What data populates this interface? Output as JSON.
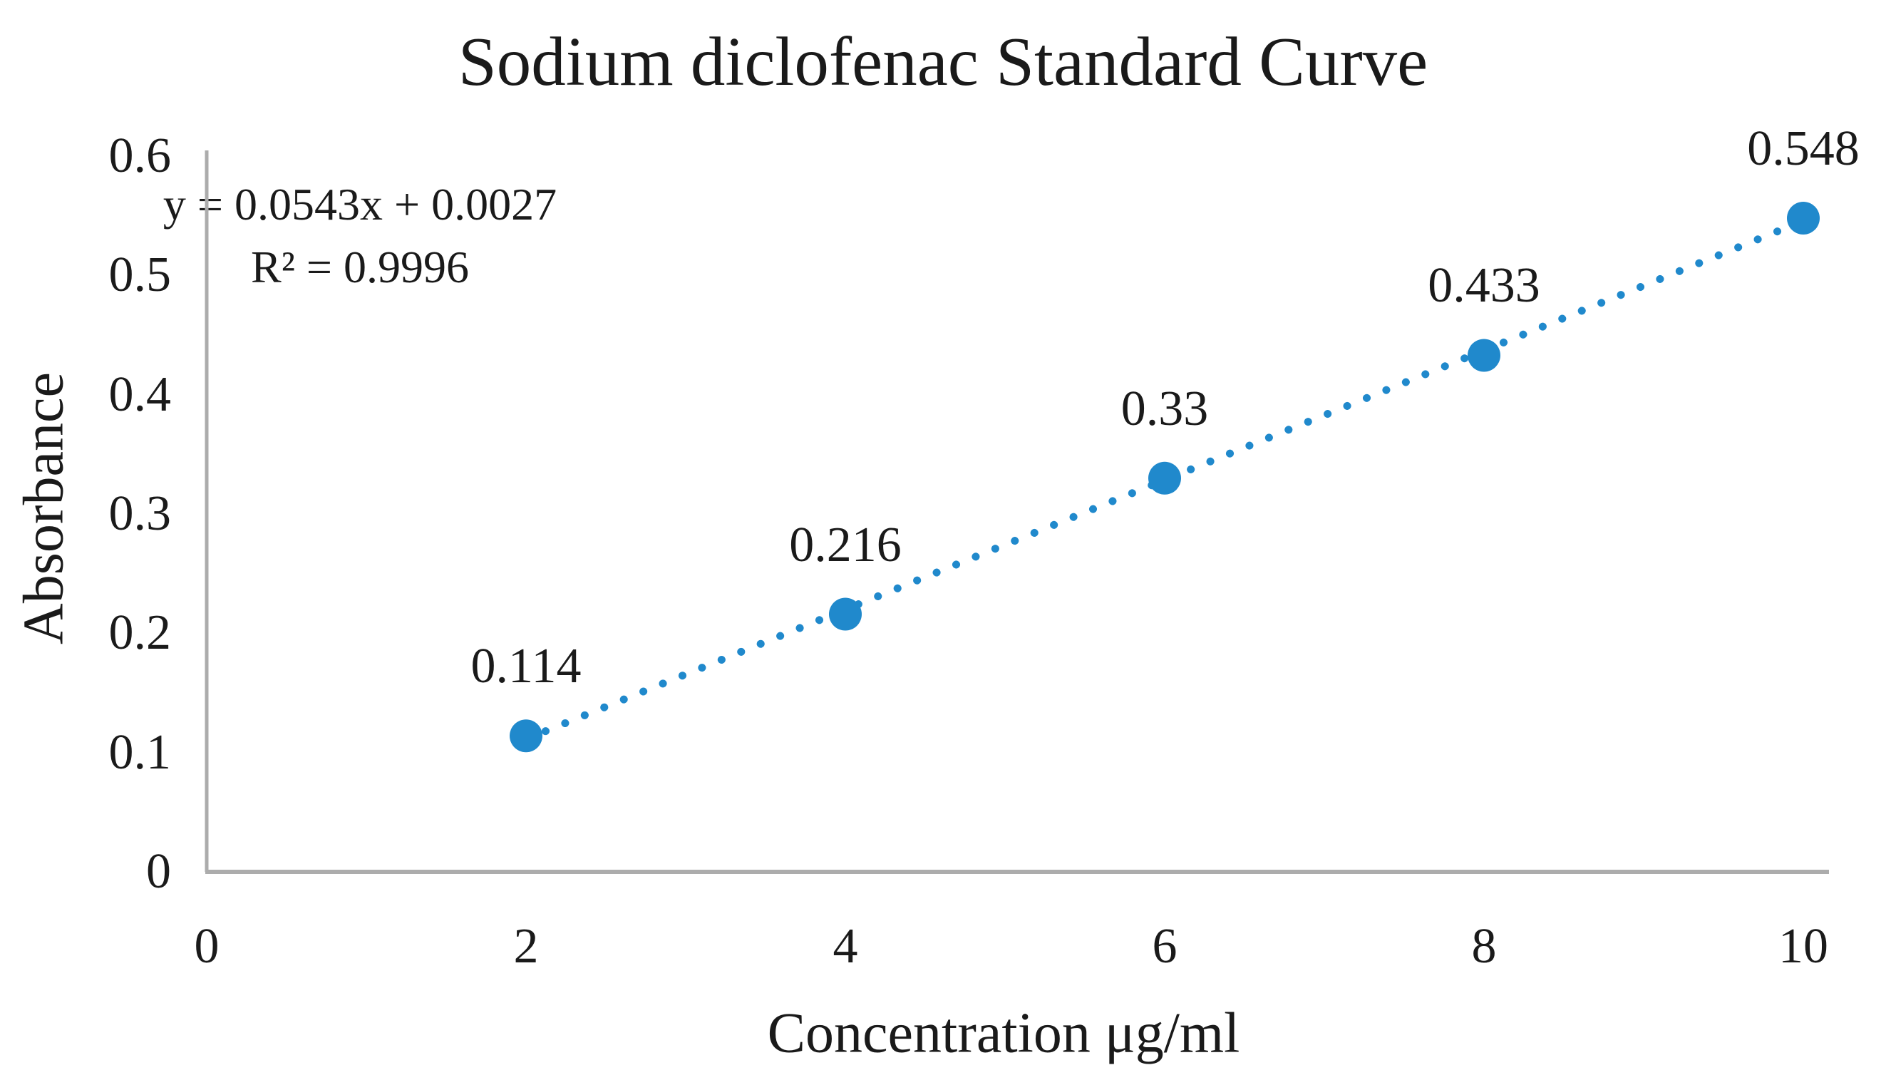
{
  "figure": {
    "background": "#ffffff"
  },
  "chart_data": {
    "type": "scatter",
    "title": "Sodium diclofenac Standard Curve",
    "xlabel": "Concentration μg/ml",
    "ylabel": "Absorbance",
    "x": [
      2,
      4,
      6,
      8,
      10
    ],
    "y": [
      0.114,
      0.216,
      0.33,
      0.433,
      0.548
    ],
    "point_labels": [
      "0.114",
      "0.216",
      "0.33",
      "0.433",
      "0.548"
    ],
    "xlim": [
      0,
      10
    ],
    "ylim": [
      0,
      0.6
    ],
    "xticks": [
      {
        "v": 0,
        "label": "0"
      },
      {
        "v": 2,
        "label": "2"
      },
      {
        "v": 4,
        "label": "4"
      },
      {
        "v": 6,
        "label": "6"
      },
      {
        "v": 8,
        "label": "8"
      },
      {
        "v": 10,
        "label": "10"
      }
    ],
    "yticks": [
      {
        "v": 0,
        "label": "0"
      },
      {
        "v": 0.1,
        "label": "0.1"
      },
      {
        "v": 0.2,
        "label": "0.2"
      },
      {
        "v": 0.3,
        "label": "0.3"
      },
      {
        "v": 0.4,
        "label": "0.4"
      },
      {
        "v": 0.5,
        "label": "0.5"
      },
      {
        "v": 0.6,
        "label": "0.6"
      }
    ],
    "trendline": {
      "slope": 0.0543,
      "intercept": 0.0027,
      "style": "dotted",
      "equation": "y = 0.0543x + 0.0027",
      "r_squared": "R² = 0.9996"
    },
    "grid": false,
    "legend": "none",
    "marker_color": "#2089CC",
    "axis_color": "#ACACAC",
    "text_color": "#1A1A1A"
  }
}
